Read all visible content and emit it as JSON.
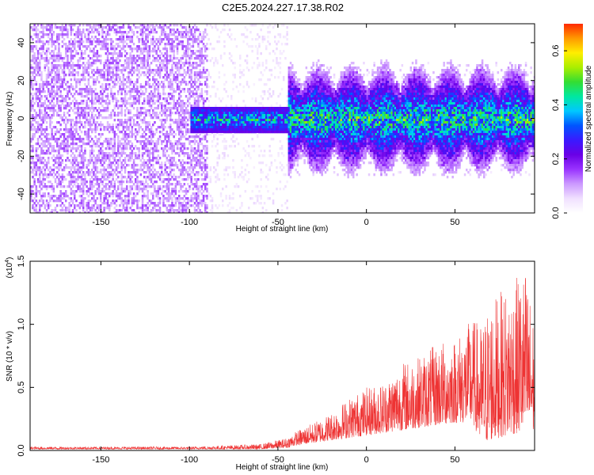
{
  "title": "C2E5.2024.227.17.38.R02",
  "colors": {
    "background": "#ffffff",
    "snr_line": "#ee3333",
    "colormap": [
      "#ffffff",
      "#f0e0ff",
      "#cc99ff",
      "#9933ff",
      "#6a00e6",
      "#3a1aff",
      "#0055ff",
      "#00c8ff",
      "#00e8a0",
      "#33dd33",
      "#aaee00",
      "#ffee00",
      "#ff9900",
      "#ff2a00"
    ]
  },
  "chart_data": [
    {
      "type": "heatmap",
      "title": "",
      "xlabel": "Height of straight line (km)",
      "ylabel": "Frequency (Hz)",
      "xlim": [
        -190,
        95
      ],
      "ylim": [
        -50,
        50
      ],
      "x_ticks": [
        -150,
        -100,
        -50,
        0,
        50
      ],
      "x_tick_labels": [
        "-150",
        "-100",
        "-50",
        "0",
        "50"
      ],
      "y_ticks": [
        -40,
        -20,
        0,
        20,
        40
      ],
      "y_tick_labels": [
        "-40",
        "-20",
        "0",
        "20",
        "40"
      ],
      "colorbar": {
        "label": "Normalized spectral amplitude",
        "range": [
          0.0,
          0.7
        ],
        "ticks": [
          0.0,
          0.2,
          0.4,
          0.6
        ],
        "tick_labels": [
          "0.0",
          "0.2",
          "0.4",
          "0.6"
        ]
      },
      "regions": [
        {
          "x_range": [
            -190,
            -90
          ],
          "description_level": 0.15,
          "freq_spread": [
            -50,
            50
          ]
        },
        {
          "x_range": [
            -90,
            -45
          ],
          "description_level": 0.04,
          "freq_spread": [
            -50,
            50
          ]
        },
        {
          "x_range": [
            -100,
            -45
          ],
          "description_level": 0.45,
          "freq_spread": [
            -8,
            8
          ]
        },
        {
          "x_range": [
            -45,
            95
          ],
          "description_level": 0.3,
          "freq_spread": [
            -25,
            25
          ]
        }
      ]
    },
    {
      "type": "line",
      "title": "",
      "xlabel": "Height of straight line (km)",
      "ylabel": "SNR (10 * v/v)",
      "y_multiplier_label": "(x10",
      "y_multiplier_exp": "4",
      "xlim": [
        -190,
        95
      ],
      "ylim": [
        0,
        1.5
      ],
      "x_ticks": [
        -150,
        -100,
        -50,
        0,
        50
      ],
      "x_tick_labels": [
        "-150",
        "-100",
        "-50",
        "0",
        "50"
      ],
      "y_ticks": [
        0.0,
        0.5,
        1.0,
        1.5
      ],
      "y_tick_labels": [
        "0.0",
        "0.5",
        "1.0",
        "1.5"
      ],
      "series_envelope": {
        "x": [
          -190,
          -150,
          -100,
          -60,
          -45,
          -40,
          -30,
          -20,
          -10,
          0,
          10,
          20,
          30,
          40,
          50,
          60,
          65,
          70,
          80,
          90,
          95
        ],
        "base": [
          0.01,
          0.01,
          0.01,
          0.01,
          0.02,
          0.04,
          0.06,
          0.08,
          0.1,
          0.12,
          0.14,
          0.16,
          0.18,
          0.2,
          0.22,
          0.22,
          0.05,
          0.08,
          0.12,
          0.15,
          0.15
        ],
        "peak": [
          0.03,
          0.03,
          0.03,
          0.05,
          0.1,
          0.15,
          0.22,
          0.3,
          0.42,
          0.5,
          0.55,
          0.7,
          0.75,
          0.85,
          0.9,
          1.05,
          1.0,
          1.2,
          1.3,
          1.45,
          1.0
        ]
      }
    }
  ]
}
